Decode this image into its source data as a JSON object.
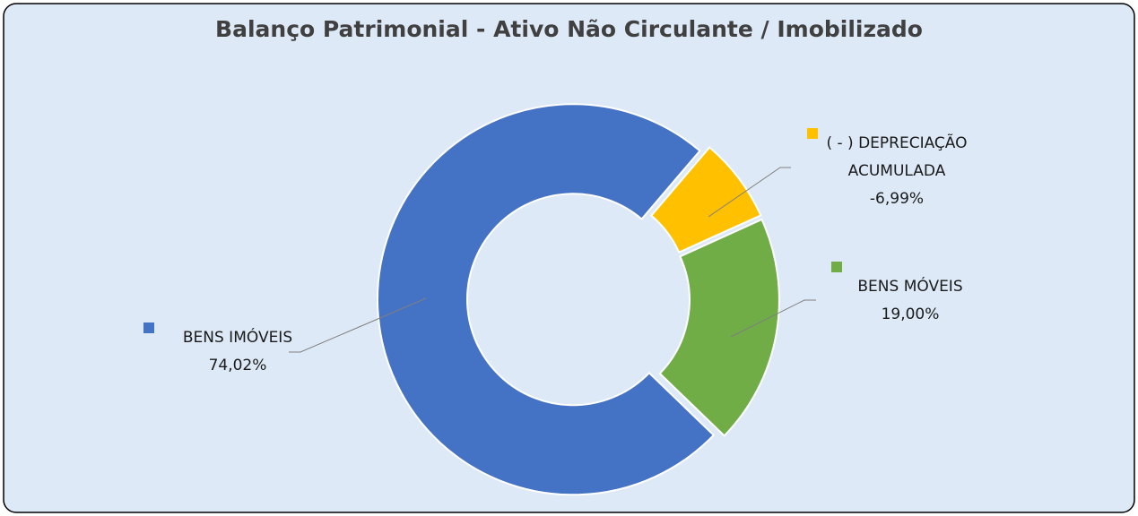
{
  "chart_data": {
    "type": "donut",
    "title": "Balanço Patrimonial - Ativo Não Circulante / Imobilizado",
    "categories": [
      "BENS IMÓVEIS",
      "( - ) DEPRECIAÇÃO ACUMULADA",
      "BENS MÓVEIS"
    ],
    "values": [
      74.02,
      -6.99,
      19.0
    ],
    "value_labels": [
      "74,02%",
      "-6,99%",
      "19,00%"
    ],
    "colors": [
      "#4472c4",
      "#ffc000",
      "#70ad47"
    ]
  }
}
